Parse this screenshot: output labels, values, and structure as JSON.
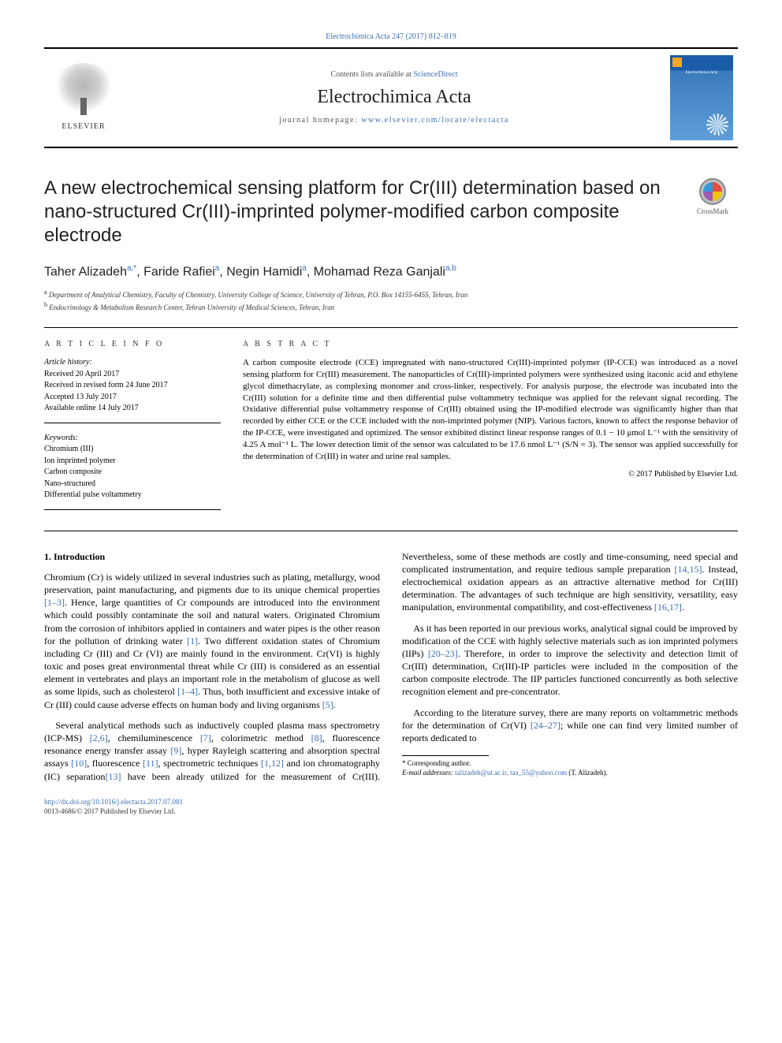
{
  "top_link": "Electrochimica Acta 247 (2017) 812–819",
  "header": {
    "contents_prefix": "Contents lists available at ",
    "contents_link": "ScienceDirect",
    "journal_name": "Electrochimica Acta",
    "homepage_prefix": "journal homepage: ",
    "homepage_link": "www.elsevier.com/locate/electacta",
    "elsevier_label": "ELSEVIER",
    "cover_journal": "Electrochimica Acta"
  },
  "crossmark_label": "CrossMark",
  "article": {
    "title": "A new electrochemical sensing platform for Cr(III) determination based on nano-structured Cr(III)-imprinted polymer-modified carbon composite electrode",
    "authors_html": "Taher Alizadeh<sup>a,*</sup>, Faride Rafiei<sup>a</sup>, Negin Hamidi<sup>a</sup>, Mohamad Reza Ganjali<sup>a,b</sup>",
    "affiliations": [
      "Department of Analytical Chemistry, Faculty of Chemistry, University College of Science, University of Tehran, P.O. Box 14155-6455, Tehran, Iran",
      "Endocrinology & Metabolism Research Center, Tehran University of Medical Sciences, Tehran, Iran"
    ],
    "affil_supers": [
      "a",
      "b"
    ]
  },
  "article_info": {
    "label": "A R T I C L E  I N F O",
    "history_label": "Article history:",
    "history": [
      "Received 20 April 2017",
      "Received in revised form 24 June 2017",
      "Accepted 13 July 2017",
      "Available online 14 July 2017"
    ],
    "keywords_label": "Keywords:",
    "keywords": [
      "Chromium (III)",
      "Ion imprinted polymer",
      "Carbon composite",
      "Nano-structured",
      "Differential pulse voltammetry"
    ]
  },
  "abstract": {
    "label": "A B S T R A C T",
    "text": "A carbon composite electrode (CCE) impregnated with nano-structured Cr(III)-imprinted polymer (IP-CCE) was introduced as a novel sensing platform for Cr(III) measurement. The nanoparticles of Cr(III)-imprinted polymers were synthesized using itaconic acid and ethylene glycol dimethacrylate, as complexing monomer and cross-linker, respectively. For analysis purpose, the electrode was incubated into the Cr(III) solution for a definite time and then differential pulse voltammetry technique was applied for the relevant signal recording. The Oxidative differential pulse voltammetry response of Cr(III) obtained using the IP-modified electrode was significantly higher than that recorded by either CCE or the CCE included with the non-imprinted polymer (NIP). Various factors, known to affect the response behavior of the IP-CCE, were investigated and optimized. The sensor exhibited distinct linear response ranges of 0.1 − 10 μmol L⁻¹ with the sensitivity of 4.25 A mol⁻¹ L. The lower detection limit of the sensor was calculated to be 17.6 nmol L⁻¹ (S/N = 3). The sensor was applied successfully for the determination of Cr(III) in water and urine real samples.",
    "copyright": "© 2017 Published by Elsevier Ltd."
  },
  "body": {
    "section_heading": "1. Introduction",
    "p1": "Chromium (Cr) is widely utilized in several industries such as plating, metallurgy, wood preservation, paint manufacturing, and pigments due to its unique chemical properties [1–3]. Hence, large quantities of Cr compounds are introduced into the environment which could possibly contaminate the soil and natural waters. Originated Chromium from the corrosion of inhibitors applied in containers and water pipes is the other reason for the pollution of drinking water [1]. Two different oxidation states of Chromium including Cr (III) and Cr (VI) are mainly found in the environment. Cr(VI) is highly toxic and poses great environmental threat while Cr (III) is considered as an essential element in vertebrates and plays an important role in the metabolism of glucose as well as some lipids, such as cholesterol [1–4]. Thus, both insufficient and excessive intake of Cr (III) could cause adverse effects on human body and living organisms [5].",
    "p2": "Several analytical methods such as inductively coupled plasma mass spectrometry (ICP-MS) [2,6], chemiluminescence [7], colorimetric method [8], fluorescence resonance energy transfer assay [9], hyper Rayleigh scattering and absorption spectral assays [10], fluorescence [11], spectrometric techniques [1,12] and ion chromatography (IC) separation[13] have been already utilized for the measurement of Cr(III). Nevertheless, some of these methods are costly and time-consuming, need special and complicated instrumentation, and require tedious sample preparation [14,15]. Instead, electrochemical oxidation appears as an attractive alternative method for Cr(III) determination. The advantages of such technique are high sensitivity, versatility, easy manipulation, environmental compatibility, and cost-effectiveness [16,17].",
    "p3": "As it has been reported in our previous works, analytical signal could be improved by modification of the CCE with highly selective materials such as ion imprinted polymers (IIPs) [20–23]. Therefore, in order to improve the selectivity and detection limit of Cr(III) determination, Cr(III)-IP particles were included in the composition of the carbon composite electrode. The IIP particles functioned concurrently as both selective recognition element and pre-concentrator.",
    "p4": "According to the literature survey, there are many reports on voltammetric methods for the determination of Cr(VI) [24–27]; while one can find very limited number of reports dedicated to",
    "ref_spans": {
      "p1": [
        "[1–3]",
        "[1]",
        "[1–4]",
        "[5]"
      ],
      "p2": [
        "[2,6]",
        "[7]",
        "[8]",
        "[9]",
        "[10]",
        "[11]",
        "[1,12]",
        "[13]",
        "[14,15]",
        "[16,17]"
      ],
      "p3": [
        "[20–23]"
      ],
      "p4": [
        "[24–27]"
      ]
    }
  },
  "footnote": {
    "corr": "* Corresponding author.",
    "email_label": "E-mail addresses: ",
    "emails": "talizadeh@ut.ac.ir, taa_55@yahoo.com",
    "email_person": " (T. Alizadeh)."
  },
  "bottom": {
    "doi": "http://dx.doi.org/10.1016/j.electacta.2017.07.081",
    "issn_line": "0013-4686/© 2017 Published by Elsevier Ltd."
  },
  "colors": {
    "link": "#3a6fb7",
    "text": "#000000",
    "muted": "#555555",
    "rule": "#000000"
  },
  "typography": {
    "body_font": "Times New Roman",
    "heading_font": "Arial",
    "title_pt": 24,
    "authors_pt": 16,
    "body_pt": 12,
    "info_pt": 10,
    "footnote_pt": 9
  }
}
